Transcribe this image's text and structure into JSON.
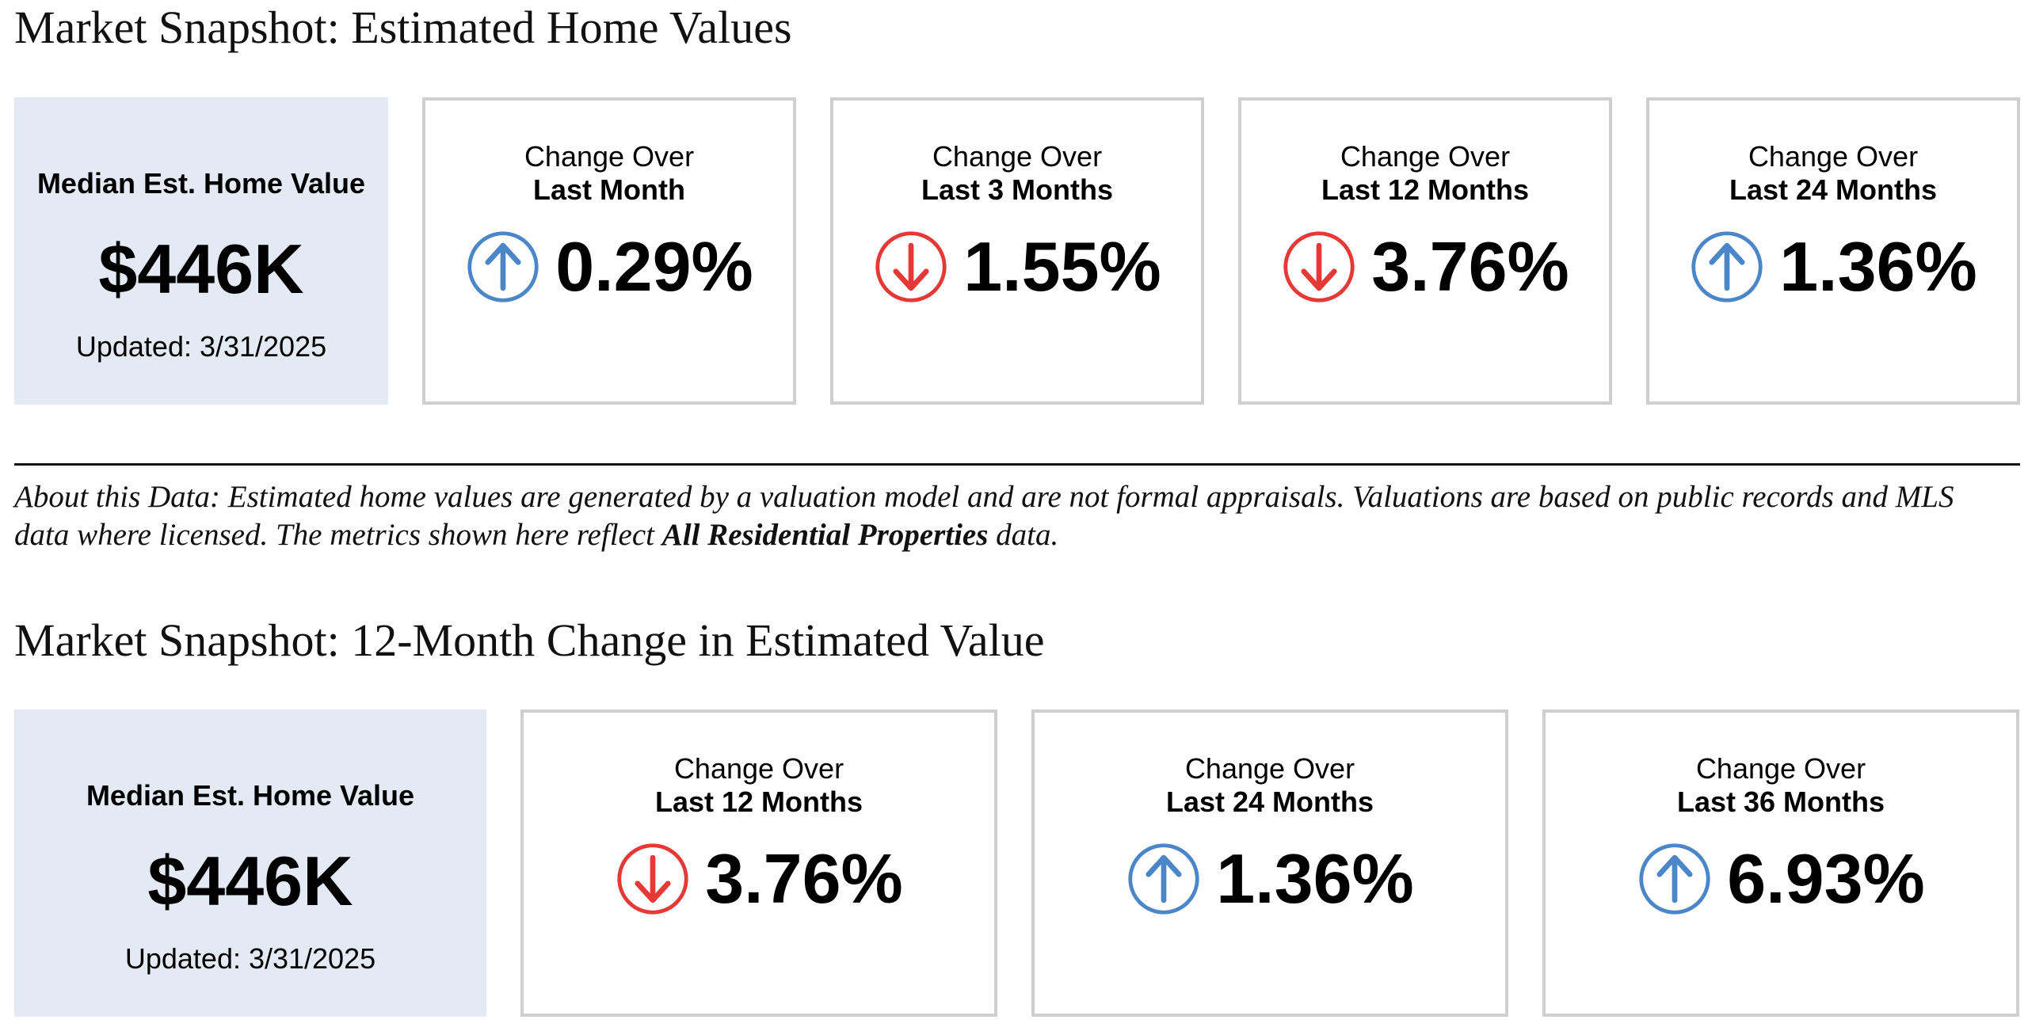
{
  "section1": {
    "title": "Market Snapshot: Estimated Home Values",
    "summary": {
      "label": "Median Est. Home Value",
      "value": "$446K",
      "updated": "Updated: 3/31/2025"
    },
    "cards": [
      {
        "line1": "Change Over",
        "line2": "Last Month",
        "direction": "up",
        "icon": "arrow-up-circle-icon",
        "value": "0.29%"
      },
      {
        "line1": "Change Over",
        "line2": "Last 3 Months",
        "direction": "down",
        "icon": "arrow-down-circle-icon",
        "value": "1.55%"
      },
      {
        "line1": "Change Over",
        "line2": "Last 12 Months",
        "direction": "down",
        "icon": "arrow-down-circle-icon",
        "value": "3.76%"
      },
      {
        "line1": "Change Over",
        "line2": "Last 24 Months",
        "direction": "up",
        "icon": "arrow-up-circle-icon",
        "value": "1.36%"
      }
    ]
  },
  "about": {
    "part1": "About this Data: Estimated home values are generated by a valuation model and are not formal appraisals. Valuations are based on public records and MLS data where licensed. The metrics shown here reflect ",
    "bold": "All Residential Properties",
    "part2": " data."
  },
  "section2": {
    "title": "Market Snapshot: 12-Month Change in Estimated Value",
    "summary": {
      "label": "Median Est. Home Value",
      "value": "$446K",
      "updated": "Updated: 3/31/2025"
    },
    "cards": [
      {
        "line1": "Change Over",
        "line2": "Last 12 Months",
        "direction": "down",
        "icon": "arrow-down-circle-icon",
        "value": "3.76%"
      },
      {
        "line1": "Change Over",
        "line2": "Last 24 Months",
        "direction": "up",
        "icon": "arrow-up-circle-icon",
        "value": "1.36%"
      },
      {
        "line1": "Change Over",
        "line2": "Last 36 Months",
        "direction": "up",
        "icon": "arrow-up-circle-icon",
        "value": "6.93%"
      }
    ]
  },
  "colors": {
    "up": "#4a86c8",
    "down": "#e53935",
    "summary_bg": "#e3eaf3",
    "card_border": "#cfcfcf"
  }
}
